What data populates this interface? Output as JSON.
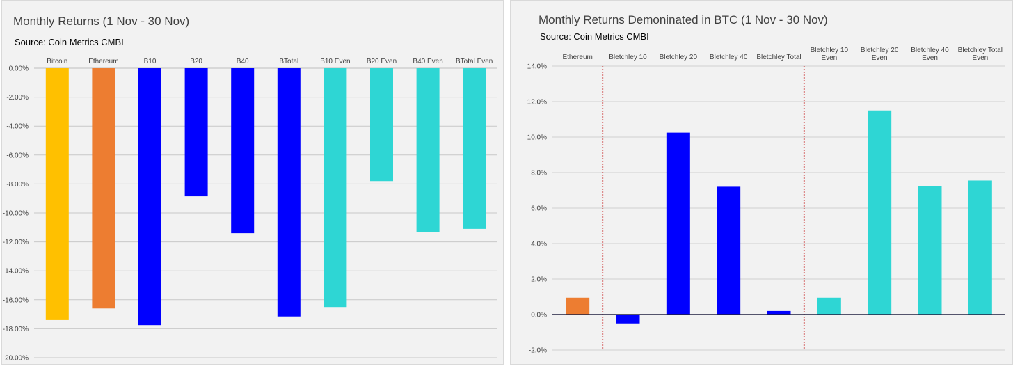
{
  "chart_data": [
    {
      "type": "bar",
      "title": "Monthly Returns (1 Nov - 30 Nov)",
      "subtitle": "Source: Coin Metrics CMBI",
      "categories": [
        "Bitcoin",
        "Ethereum",
        "B10",
        "B20",
        "B40",
        "BTotal",
        "B10 Even",
        "B20 Even",
        "B40 Even",
        "BTotal Even"
      ],
      "values": [
        -17.4,
        -16.6,
        -17.75,
        -8.85,
        -11.4,
        -17.15,
        -16.5,
        -7.8,
        -11.3,
        -11.1
      ],
      "colors": [
        "#ffc000",
        "#ed7d31",
        "#0000ff",
        "#0000ff",
        "#0000ff",
        "#0000ff",
        "#2ed6d4",
        "#2ed6d4",
        "#2ed6d4",
        "#2ed6d4"
      ],
      "ylim": [
        -20,
        0
      ],
      "yticks": [
        "0.00%",
        "-2.00%",
        "-4.00%",
        "-6.00%",
        "-8.00%",
        "-10.00%",
        "-12.00%",
        "-14.00%",
        "-16.00%",
        "-18.00%",
        "-20.00%"
      ],
      "ytick_values": [
        0,
        -2,
        -4,
        -6,
        -8,
        -10,
        -12,
        -14,
        -16,
        -18,
        -20
      ],
      "grid": true,
      "category_labels_position": "top"
    },
    {
      "type": "bar",
      "title": "Monthly Returns Demoninated in BTC (1 Nov - 30 Nov)",
      "subtitle": "Source: Coin Metrics CMBI",
      "categories": [
        [
          "Ethereum"
        ],
        [
          "Bletchley 10"
        ],
        [
          "Bletchley 20"
        ],
        [
          "Bletchley 40"
        ],
        [
          "Bletchley Total"
        ],
        [
          "Bletchley 10",
          "Even"
        ],
        [
          "Bletchley 20",
          "Even"
        ],
        [
          "Bletchley 40",
          "Even"
        ],
        [
          "Bletchley Total",
          "Even"
        ]
      ],
      "values": [
        0.95,
        -0.5,
        10.25,
        7.2,
        0.2,
        0.95,
        11.5,
        7.25,
        7.55
      ],
      "colors": [
        "#ed7d31",
        "#0000ff",
        "#0000ff",
        "#0000ff",
        "#0000ff",
        "#2ed6d4",
        "#2ed6d4",
        "#2ed6d4",
        "#2ed6d4"
      ],
      "ylim": [
        -2,
        14
      ],
      "yticks": [
        "14.0%",
        "12.0%",
        "10.0%",
        "8.0%",
        "6.0%",
        "4.0%",
        "2.0%",
        "0.0%",
        "-2.0%"
      ],
      "ytick_values": [
        14,
        12,
        10,
        8,
        6,
        4,
        2,
        0,
        -2
      ],
      "grid": true,
      "separators_after_category": [
        1,
        5
      ],
      "separator_color": "#c00000",
      "category_labels_position": "top"
    }
  ]
}
